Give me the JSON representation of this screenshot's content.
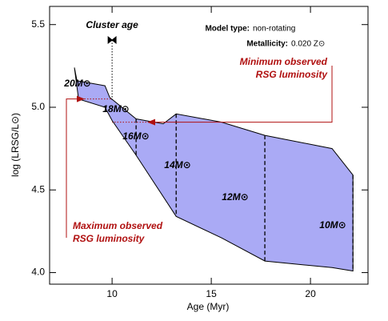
{
  "chart_data": {
    "type": "area",
    "xlabel": "Age (Myr)",
    "ylabel": "log (LRSG/L⊙)",
    "xlim": [
      6.85,
      22.9
    ],
    "ylim": [
      3.93,
      5.61
    ],
    "xticks": [
      10,
      15,
      20
    ],
    "yticks": [
      {
        "value": 4,
        "label": "4.0"
      },
      4.5,
      {
        "value": 5,
        "label": "5.0"
      },
      5.5
    ],
    "color": "#aaaaf5",
    "region": {
      "age": [
        8.1,
        8.23,
        9.64,
        9.88,
        11.21,
        12.58,
        13.23,
        15.52,
        17.7,
        21.09,
        22.14,
        22.14,
        21.09,
        17.7,
        15.52,
        13.23,
        11.21,
        10.0,
        9.64,
        8.31
      ],
      "luminosity": [
        5.24,
        5.16,
        5.13,
        5.06,
        4.93,
        4.9,
        4.96,
        4.91,
        4.83,
        4.75,
        4.59,
        4.01,
        4.03,
        4.07,
        4.21,
        4.34,
        4.71,
        4.92,
        5.0,
        5.05
      ]
    },
    "tracks": [
      {
        "age": 11.21,
        "top": 4.93,
        "bottom": 4.71
      },
      {
        "age": 13.23,
        "top": 4.96,
        "bottom": 4.34
      },
      {
        "age": 17.7,
        "top": 4.83,
        "bottom": 4.07
      },
      {
        "age": 22.14,
        "top": 4.59,
        "bottom": 4.01
      }
    ],
    "mass_labels": [
      "20M⊙",
      "18M⊙",
      "16M⊙",
      "14M⊙",
      "12M⊙",
      "10M⊙"
    ],
    "cluster_age": {
      "label": "Cluster age",
      "value": 10,
      "error": 0.2
    },
    "min_rsg_luminosity": {
      "lines": [
        "Minimum observed",
        "RSG luminosity"
      ],
      "value": 4.91
    },
    "max_rsg_luminosity": {
      "lines": [
        "Maximum observed",
        "RSG luminosity"
      ],
      "value": 5.05
    },
    "model_type_label": "Model type:",
    "model_type": "non-rotating",
    "metallicity_label": "Metallicity:",
    "metallicity": "0.020 Z⊙"
  }
}
